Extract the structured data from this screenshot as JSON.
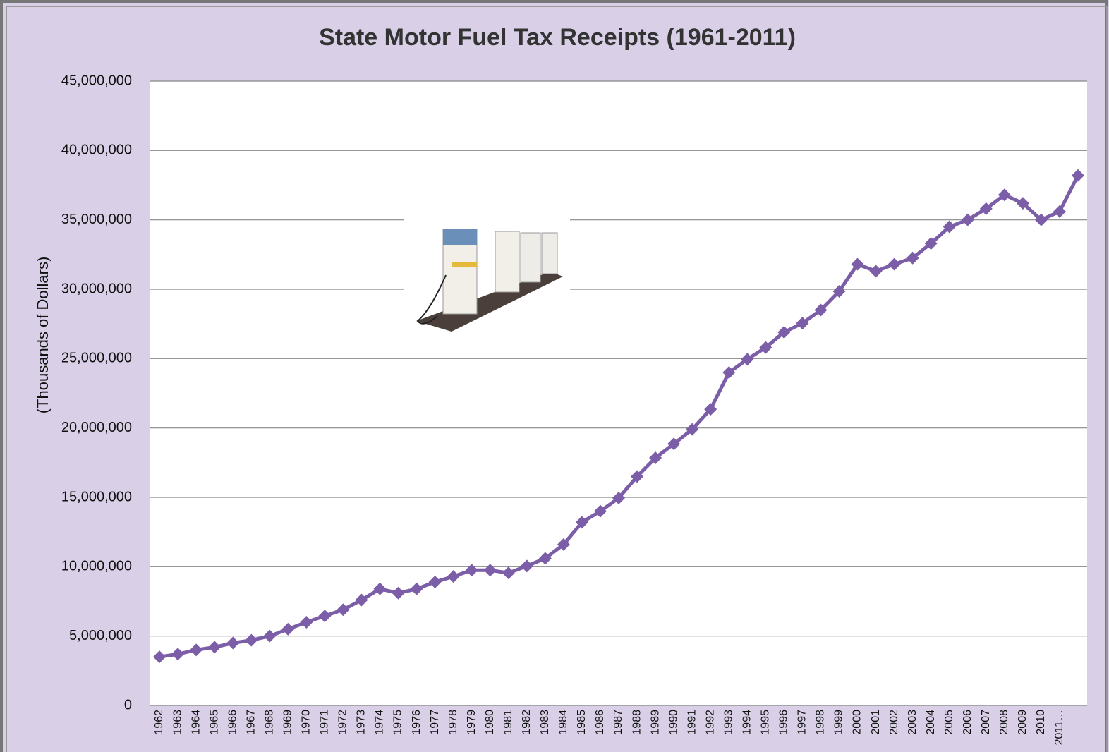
{
  "chart_data": {
    "type": "line",
    "title": "State Motor Fuel Tax Receipts (1961-2011)",
    "y_label": "(Thousands of Dollars)",
    "categories": [
      "1962",
      "1963",
      "1964",
      "1965",
      "1966",
      "1967",
      "1968",
      "1969",
      "1970",
      "1971",
      "1972",
      "1973",
      "1974",
      "1975",
      "1976",
      "1977",
      "1978",
      "1979",
      "1980",
      "1981",
      "1982",
      "1983",
      "1984",
      "1985",
      "1986",
      "1987",
      "1988",
      "1989",
      "1990",
      "1991",
      "1992",
      "1993",
      "1994",
      "1995",
      "1996",
      "1997",
      "1998",
      "1999",
      "2000",
      "2001",
      "2002",
      "2003",
      "2004",
      "2005",
      "2006",
      "2007",
      "2008",
      "2009",
      "2010",
      "2011…",
      null
    ],
    "series": [
      {
        "color": "#7b5ea7",
        "values": [
          3500000,
          3700000,
          4000000,
          4200000,
          4500000,
          4700000,
          5000000,
          5500000,
          6000000,
          6450000,
          6900000,
          7600000,
          8400000,
          8100000,
          8400000,
          8900000,
          9300000,
          9750000,
          9750000,
          9550000,
          10050000,
          10600000,
          11600000,
          13200000,
          14000000,
          14950000,
          16500000,
          17850000,
          18850000,
          19900000,
          21350000,
          24000000,
          24950000,
          25800000,
          26900000,
          27550000,
          28500000,
          29850000,
          31800000,
          31300000,
          31800000,
          32250000,
          33300000,
          34500000,
          35000000,
          35800000,
          36800000,
          36200000,
          35000000,
          35600000,
          38200000
        ]
      }
    ],
    "ylim": [
      0,
      45000000
    ],
    "yticks": [
      0,
      {
        "value": 5000000,
        "label": "5,000,000"
      },
      {
        "value": 10000000,
        "label": "10,000,000"
      },
      {
        "value": 15000000,
        "label": "15,000,000"
      },
      {
        "value": 20000000,
        "label": "20,000,000"
      },
      {
        "value": 25000000,
        "label": "25,000,000"
      },
      {
        "value": 30000000,
        "label": "30,000,000"
      },
      {
        "value": 35000000,
        "label": "35,000,000"
      },
      {
        "value": 40000000,
        "label": "40,000,000"
      },
      {
        "value": 45000000,
        "label": "45,000,000"
      }
    ],
    "grid": true
  }
}
